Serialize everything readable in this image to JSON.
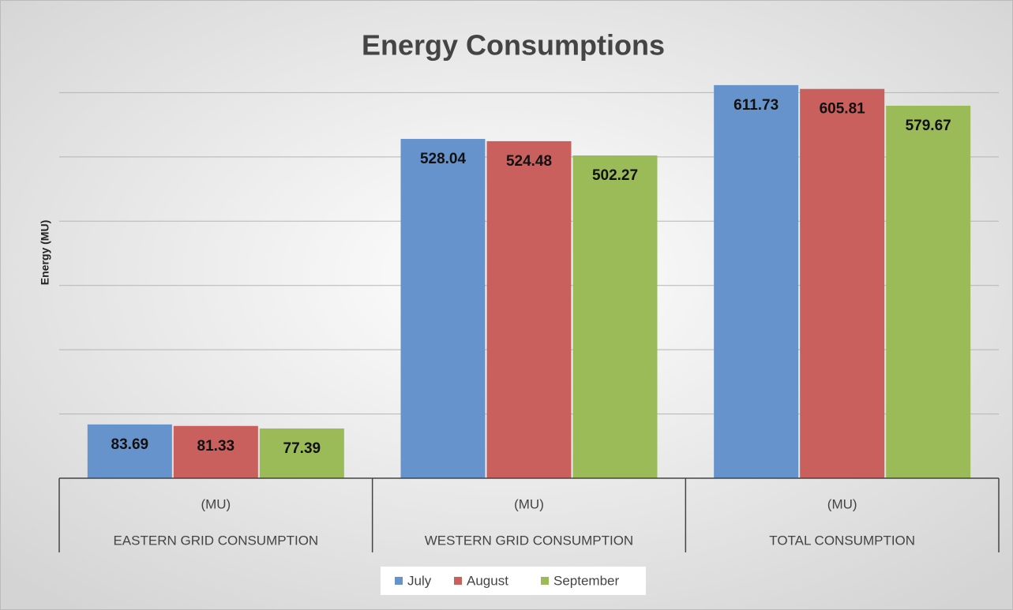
{
  "chart_data": {
    "type": "bar",
    "title": "Energy Consumptions",
    "y_label": "Energy (MU)",
    "categories": [
      "EASTERN GRID CONSUMPTION",
      "WESTERN GRID CONSUMPTION",
      "TOTAL CONSUMPTION"
    ],
    "category_units": [
      "(MU)",
      "(MU)",
      "(MU)"
    ],
    "series": [
      {
        "name": "July",
        "color": "#6693cb",
        "values": [
          83.69,
          528.04,
          611.73
        ]
      },
      {
        "name": "August",
        "color": "#c9605e",
        "values": [
          81.33,
          524.48,
          605.81
        ]
      },
      {
        "name": "September",
        "color": "#9bbb59",
        "values": [
          77.39,
          502.27,
          579.67
        ]
      }
    ],
    "ylim": [
      0,
      700
    ],
    "yticks": [
      0,
      100,
      200,
      300,
      400,
      500,
      600
    ],
    "grid": true,
    "legend": "bottom"
  }
}
